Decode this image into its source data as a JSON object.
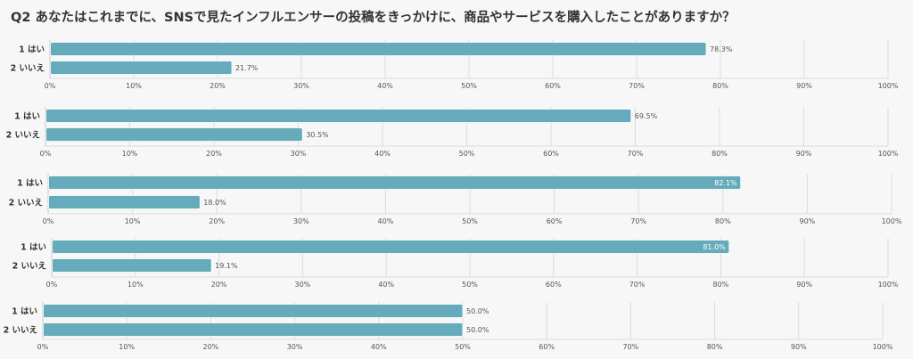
{
  "title": "Q2 あなたはこれまでに、SNSで見たインフルエンサーの投稿をきっかけに、商品やサービスを購入したことがありますか？",
  "colors": {
    "bar": "#66abbb",
    "bar_stroke": "#ffffff",
    "grid": "#dcdcdc",
    "axis": "#c8c8c8",
    "background": "#f7f7f7"
  },
  "chart_data": [
    {
      "type": "bar",
      "orientation": "horizontal",
      "categories": [
        "1 はい",
        "2 いいえ"
      ],
      "values": [
        78.3,
        21.7
      ],
      "value_labels": [
        "78.3%",
        "21.7%"
      ],
      "xlim": [
        0,
        100
      ],
      "xticks": [
        "0%",
        "10%",
        "20%",
        "30%",
        "40%",
        "50%",
        "60%",
        "70%",
        "80%",
        "90%",
        "100%"
      ],
      "grid": true
    },
    {
      "type": "bar",
      "orientation": "horizontal",
      "categories": [
        "1 はい",
        "2 いいえ"
      ],
      "values": [
        69.5,
        30.5
      ],
      "value_labels": [
        "69.5%",
        "30.5%"
      ],
      "xlim": [
        0,
        100
      ],
      "xticks": [
        "0%",
        "10%",
        "20%",
        "30%",
        "40%",
        "50%",
        "60%",
        "70%",
        "80%",
        "90%",
        "100%"
      ],
      "grid": true
    },
    {
      "type": "bar",
      "orientation": "horizontal",
      "categories": [
        "1 はい",
        "2 いいえ"
      ],
      "values": [
        82.1,
        18.0
      ],
      "value_labels": [
        "82.1%",
        "18.0%"
      ],
      "xlim": [
        0,
        100
      ],
      "xticks": [
        "0%",
        "10%",
        "20%",
        "30%",
        "40%",
        "50%",
        "60%",
        "70%",
        "80%",
        "90%",
        "100%"
      ],
      "grid": true
    },
    {
      "type": "bar",
      "orientation": "horizontal",
      "categories": [
        "1 はい",
        "2 いいえ"
      ],
      "values": [
        81.0,
        19.1
      ],
      "value_labels": [
        "81.0%",
        "19.1%"
      ],
      "xlim": [
        0,
        100
      ],
      "xticks": [
        "0%",
        "10%",
        "20%",
        "30%",
        "40%",
        "50%",
        "60%",
        "70%",
        "80%",
        "90%",
        "100%"
      ],
      "grid": true
    },
    {
      "type": "bar",
      "orientation": "horizontal",
      "categories": [
        "1 はい",
        "2 いいえ"
      ],
      "values": [
        50.0,
        50.0
      ],
      "value_labels": [
        "50.0%",
        "50.0%"
      ],
      "xlim": [
        0,
        100
      ],
      "xticks": [
        "0%",
        "10%",
        "20%",
        "30%",
        "40%",
        "50%",
        "60%",
        "70%",
        "80%",
        "90%",
        "100%"
      ],
      "grid": true
    }
  ]
}
